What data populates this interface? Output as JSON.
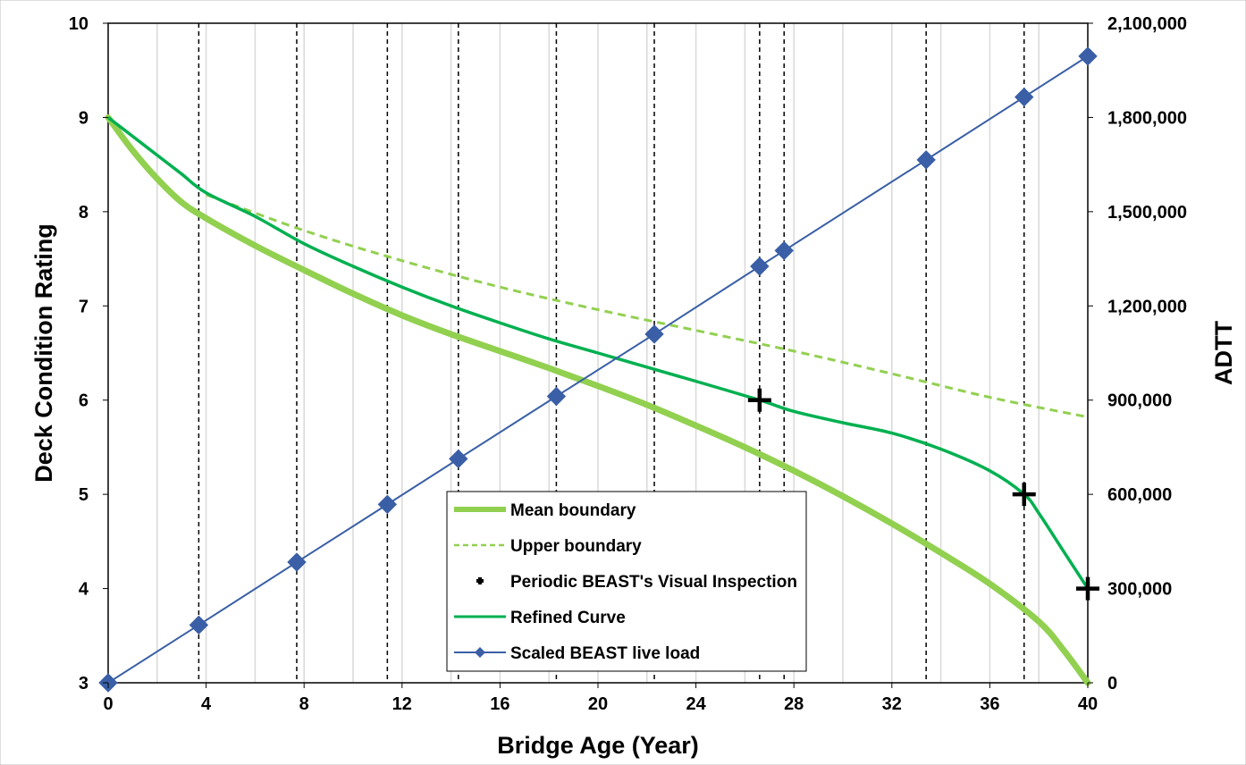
{
  "chart_data": {
    "type": "line",
    "title": "",
    "xlabel": "Bridge Age (Year)",
    "ylabel": "Deck Condition Rating",
    "y2label": "ADTT",
    "xlim": [
      0,
      40
    ],
    "ylim": [
      3,
      10
    ],
    "y2lim": [
      0,
      2100000
    ],
    "x_ticks": [
      0,
      4,
      8,
      12,
      16,
      20,
      24,
      28,
      32,
      36,
      40
    ],
    "y_ticks": [
      3,
      4,
      5,
      6,
      7,
      8,
      9,
      10
    ],
    "y2_ticks": [
      "0",
      "300,000",
      "600,000",
      "900,000",
      "1,200,000",
      "1,500,000",
      "1,800,000",
      "2,100,000"
    ],
    "grid": "vertical",
    "legend_position": "bottom-center",
    "inspection_years": [
      3.7,
      7.7,
      11.4,
      14.3,
      18.3,
      22.3,
      26.6,
      27.6,
      33.4,
      37.4
    ],
    "series": [
      {
        "name": "Mean boundary",
        "style": "thick-line",
        "color": "#92D050",
        "x": [
          0,
          1,
          2,
          3,
          4,
          6,
          8,
          10,
          12,
          14,
          16,
          18,
          20,
          22,
          24,
          26,
          28,
          30,
          32,
          34,
          36,
          38,
          39,
          40
        ],
        "y": [
          9.0,
          8.65,
          8.35,
          8.1,
          7.93,
          7.64,
          7.38,
          7.13,
          6.9,
          6.7,
          6.52,
          6.34,
          6.15,
          5.95,
          5.73,
          5.5,
          5.25,
          4.98,
          4.69,
          4.38,
          4.05,
          3.65,
          3.35,
          3.0
        ]
      },
      {
        "name": "Upper boundary",
        "style": "dashed-line",
        "color": "#92D050",
        "x": [
          4,
          8,
          12,
          16,
          20,
          24,
          28,
          32,
          36,
          40
        ],
        "y": [
          8.18,
          7.8,
          7.48,
          7.2,
          6.96,
          6.74,
          6.52,
          6.28,
          6.03,
          5.82
        ]
      },
      {
        "name": "Periodic BEAST's Visual Inspection",
        "style": "cross-marker",
        "color": "#000000",
        "x": [
          26.6,
          37.4,
          40
        ],
        "y": [
          6,
          5,
          4
        ]
      },
      {
        "name": "Refined Curve",
        "style": "line",
        "color": "#00B050",
        "x": [
          0,
          1,
          2,
          3,
          4,
          6,
          8,
          10,
          12,
          14,
          16,
          18,
          20,
          22,
          24,
          26.6,
          28,
          30,
          32,
          34,
          36,
          37.4,
          38,
          39,
          40
        ],
        "y": [
          9.0,
          8.8,
          8.6,
          8.4,
          8.2,
          7.95,
          7.66,
          7.42,
          7.2,
          7.0,
          6.82,
          6.65,
          6.5,
          6.35,
          6.2,
          6.0,
          5.88,
          5.76,
          5.65,
          5.48,
          5.25,
          5.0,
          4.8,
          4.4,
          4.0
        ]
      },
      {
        "name": "Scaled BEAST live load",
        "style": "line-diamond",
        "color": "#3A5FA6",
        "axis": "y2",
        "x": [
          0,
          3.7,
          7.7,
          11.4,
          14.3,
          18.3,
          22.3,
          26.6,
          27.6,
          33.4,
          37.4,
          40
        ],
        "y": [
          0,
          184000,
          384000,
          568000,
          713000,
          912000,
          1110000,
          1326000,
          1376000,
          1665000,
          1865000,
          1995000
        ]
      }
    ]
  }
}
